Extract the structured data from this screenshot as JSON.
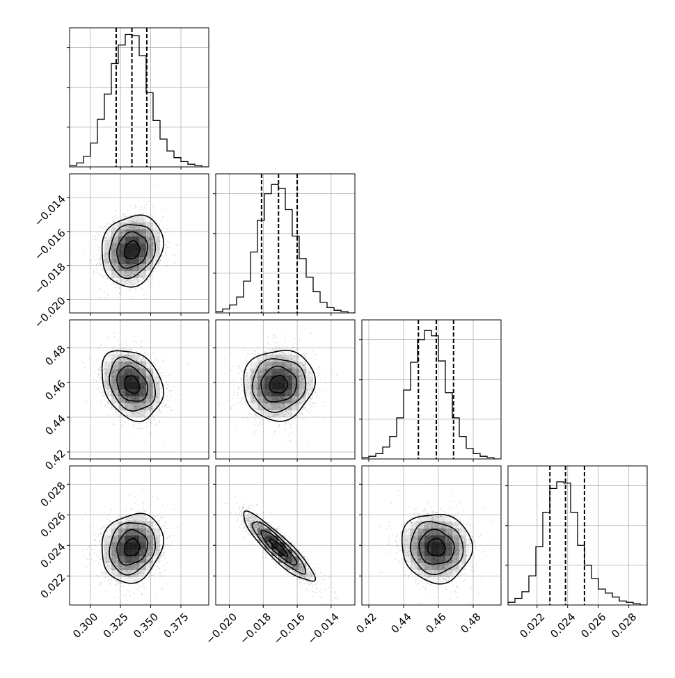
{
  "chart_data": {
    "type": "corner",
    "parameters": [
      {
        "range": [
          0.283,
          0.398
        ],
        "quantiles": [
          0.3215,
          0.3345,
          0.3468
        ],
        "ticks": [
          0.3,
          0.325,
          0.35,
          0.375
        ],
        "tick_labels": [
          "0.300",
          "0.325",
          "0.350",
          "0.375"
        ],
        "histogram": {
          "bins": 20,
          "values": [
            1,
            3,
            8,
            18,
            36,
            55,
            78,
            92,
            100,
            99,
            84,
            56,
            35,
            21,
            12,
            7,
            4,
            2,
            1,
            0
          ],
          "ylim": [
            0,
            105
          ]
        }
      },
      {
        "range": [
          -0.0208,
          -0.0126
        ],
        "quantiles": [
          -0.0181,
          -0.0171,
          -0.016
        ],
        "ticks": [
          -0.02,
          -0.018,
          -0.016,
          -0.014
        ],
        "tick_labels": [
          "−0.020",
          "−0.018",
          "−0.016",
          "−0.014"
        ],
        "histogram": {
          "bins": 20,
          "values": [
            1,
            3,
            6,
            12,
            24,
            46,
            70,
            90,
            97,
            94,
            78,
            58,
            41,
            27,
            16,
            8,
            4,
            2,
            1,
            0
          ],
          "ylim": [
            0,
            105
          ]
        }
      },
      {
        "range": [
          0.416,
          0.496
        ],
        "quantiles": [
          0.4485,
          0.4588,
          0.4687
        ],
        "ticks": [
          0.42,
          0.44,
          0.46,
          0.48
        ],
        "tick_labels": [
          "0.42",
          "0.44",
          "0.46",
          "0.48"
        ],
        "histogram": {
          "bins": 20,
          "values": [
            1,
            2,
            4,
            9,
            17,
            31,
            52,
            73,
            90,
            97,
            93,
            74,
            50,
            31,
            17,
            8,
            4,
            2,
            1,
            0
          ],
          "ylim": [
            0,
            105
          ]
        }
      },
      {
        "range": [
          0.0201,
          0.0292
        ],
        "quantiles": [
          0.02284,
          0.02386,
          0.0251
        ],
        "ticks": [
          0.022,
          0.024,
          0.026,
          0.028
        ],
        "tick_labels": [
          "0.022",
          "0.024",
          "0.026",
          "0.028"
        ],
        "histogram": {
          "bins": 20,
          "values": [
            2,
            5,
            10,
            22,
            44,
            70,
            88,
            93,
            92,
            70,
            45,
            30,
            20,
            12,
            9,
            6,
            3,
            2,
            1,
            0
          ],
          "ylim": [
            0,
            105
          ]
        }
      }
    ],
    "correlations": {
      "1-0": 0.15,
      "2-0": -0.25,
      "2-1": 0.05,
      "3-0": 0.15,
      "3-1": -0.9,
      "3-2": -0.05
    },
    "axis_labels": {
      "x": [
        "",
        "",
        "",
        ""
      ],
      "y": [
        "",
        "",
        "",
        ""
      ]
    },
    "grid": true,
    "colors": {
      "line": "#000000",
      "grid": "#b0b0b0",
      "points": "#808080",
      "density": "#000000"
    }
  }
}
